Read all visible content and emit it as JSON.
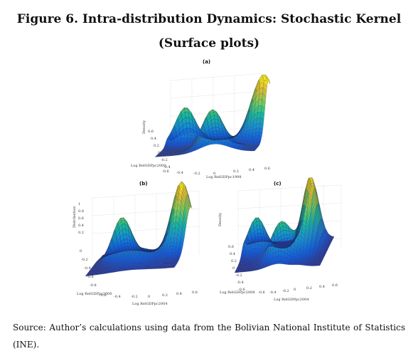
{
  "figure": {
    "title": "Figure 6. Intra-distribution Dynamics: Stochastic Kernel (Surface plots)",
    "source": "Source: Author’s calculations using data from the Bolivian National Institute of Statistics (INE)."
  },
  "panels": [
    {
      "label": "(a)",
      "zlabel": "Density",
      "xlabel": "Log RelGDPpc1998",
      "ylabel": "Log RelGDPpc2000",
      "x_ticks": [
        "-0.6",
        "-0.4",
        "-0.2",
        "0",
        "0.2",
        "0.4",
        "0.6"
      ],
      "y_ticks": [
        "0.6",
        "0.4",
        "0.2",
        "0",
        "-0.2",
        "-0.4"
      ]
    },
    {
      "label": "(b)",
      "zlabel": "Distribution",
      "xlabel": "Log RelGDPpc2004",
      "ylabel": "Log RelGDPpc2000",
      "x_ticks": [
        "-0.6",
        "-0.4",
        "-0.2",
        "0",
        "0.2",
        "0.4",
        "0.6"
      ],
      "y_ticks": [
        "1",
        "0.8",
        "0.6",
        "0.4",
        "0.2",
        "0",
        "-0.2",
        "-0.4",
        "-0.6",
        "-0.8"
      ]
    },
    {
      "label": "(c)",
      "zlabel": "Density",
      "xlabel": "Log RelGDPpc2004",
      "ylabel": "Log RelGDPpc2008",
      "x_ticks": [
        "-0.6",
        "-0.4",
        "-0.2",
        "0",
        "0.2",
        "0.4",
        "0.6"
      ],
      "y_ticks": [
        "0.6",
        "0.4",
        "0.2",
        "0",
        "-0.2",
        "-0.4",
        "-0.6"
      ]
    }
  ]
}
